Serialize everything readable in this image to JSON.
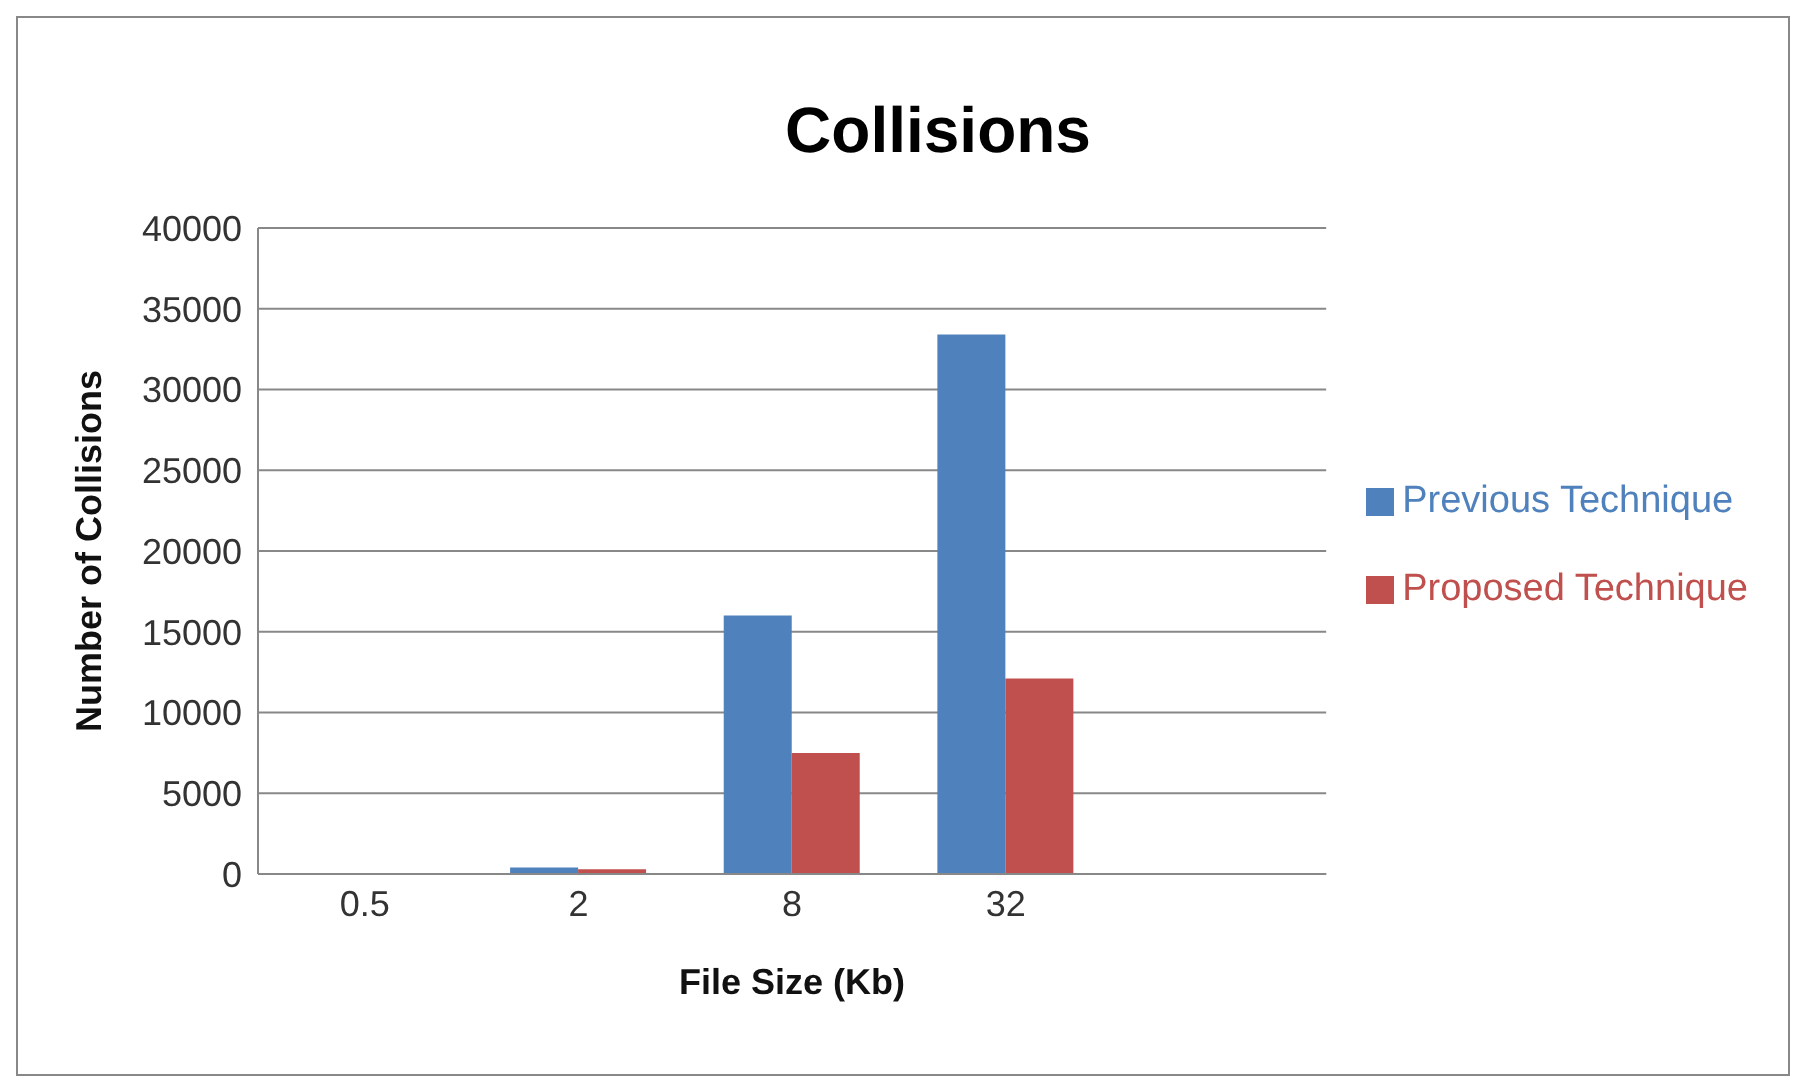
{
  "chart_data": {
    "type": "bar",
    "title": "Collisions",
    "xlabel": "File Size (Kb)",
    "ylabel": "Number of Collisions",
    "categories": [
      "0.5",
      "2",
      "8",
      "32",
      null
    ],
    "series": [
      {
        "name": "Previous Technique",
        "color": "#4f81bd",
        "values": [
          0,
          400,
          16000,
          33400,
          null
        ]
      },
      {
        "name": "Proposed Technique",
        "color": "#c0504d",
        "values": [
          0,
          300,
          7500,
          12100,
          null
        ]
      }
    ],
    "ylim": [
      0,
      40000
    ],
    "yticks": [
      0,
      5000,
      10000,
      15000,
      20000,
      25000,
      30000,
      35000,
      40000
    ],
    "grid": "y",
    "legend": "right"
  }
}
